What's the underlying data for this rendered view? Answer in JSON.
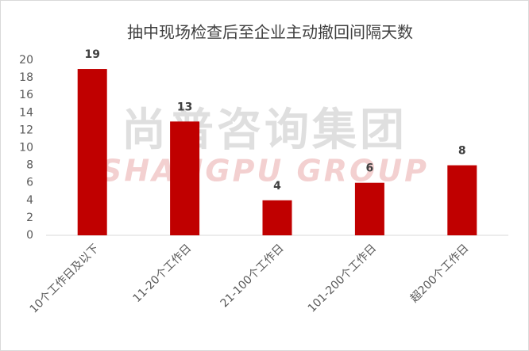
{
  "chart_data": {
    "type": "bar",
    "title": "抽中现场检查后至企业主动撤回间隔天数",
    "watermark": {
      "text": "尚普咨询集团",
      "subtext": "SHANGPU GROUP"
    },
    "categories": [
      "10个工作日及以下",
      "11-20个工作日",
      "21-100个工作日",
      "101-200个工作日",
      "超200个工作日"
    ],
    "values": [
      19,
      13,
      4,
      6,
      8
    ],
    "color": "#c00000",
    "ylim": [
      0,
      20
    ],
    "yticks": [
      0,
      2,
      4,
      6,
      8,
      10,
      12,
      14,
      16,
      18,
      20
    ],
    "grid": false
  }
}
